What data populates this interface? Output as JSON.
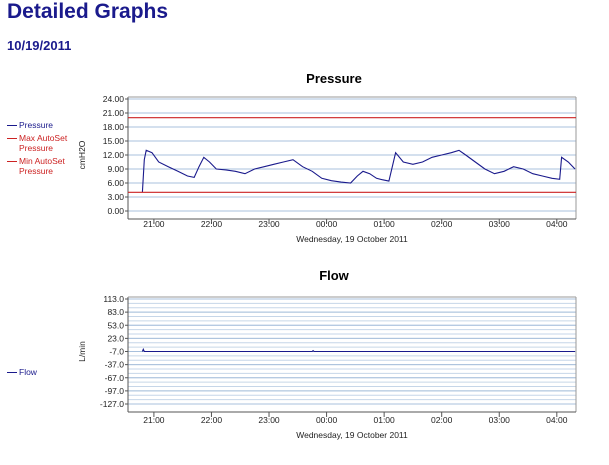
{
  "page": {
    "title": "Detailed Graphs",
    "date": "10/19/2011"
  },
  "colors": {
    "title": "#1a1a8c",
    "series_blue": "#1a1a8c",
    "threshold_red": "#cc2222",
    "grid_blue": "#a8c0dc"
  },
  "chart_data": [
    {
      "type": "line",
      "title": "Pressure",
      "ylabel": "cmH2O",
      "xlabel": "Wednesday, 19 October 2011",
      "ylim": [
        0,
        24
      ],
      "yticks": [
        "24.00",
        "21.00",
        "18.00",
        "15.00",
        "12.00",
        "9.00",
        "6.00",
        "3.00",
        "0.00"
      ],
      "xlim": [
        "20:33",
        "04:20"
      ],
      "xticks": [
        "21:00",
        "22:00",
        "23:00",
        "00:00",
        "01:00",
        "02:00",
        "03:00",
        "04:00"
      ],
      "grid": true,
      "legend_position": "left",
      "series": [
        {
          "name": "Pressure",
          "color": "#1a1a8c",
          "points": [
            [
              "20:48",
              4.0
            ],
            [
              "20:50",
              11.0
            ],
            [
              "20:52",
              13.0
            ],
            [
              "20:58",
              12.5
            ],
            [
              "21:05",
              10.5
            ],
            [
              "21:15",
              9.5
            ],
            [
              "21:25",
              8.5
            ],
            [
              "21:35",
              7.5
            ],
            [
              "21:42",
              7.2
            ],
            [
              "21:47",
              9.5
            ],
            [
              "21:52",
              11.5
            ],
            [
              "21:58",
              10.5
            ],
            [
              "22:05",
              9.0
            ],
            [
              "22:15",
              8.8
            ],
            [
              "22:25",
              8.5
            ],
            [
              "22:35",
              8.0
            ],
            [
              "22:45",
              9.0
            ],
            [
              "22:55",
              9.5
            ],
            [
              "23:05",
              10.0
            ],
            [
              "23:15",
              10.5
            ],
            [
              "23:25",
              11.0
            ],
            [
              "23:35",
              9.5
            ],
            [
              "23:45",
              8.5
            ],
            [
              "23:55",
              7.0
            ],
            [
              "00:05",
              6.5
            ],
            [
              "00:15",
              6.2
            ],
            [
              "00:25",
              6.0
            ],
            [
              "00:32",
              7.5
            ],
            [
              "00:38",
              8.5
            ],
            [
              "00:45",
              8.0
            ],
            [
              "00:52",
              7.0
            ],
            [
              "00:58",
              6.7
            ],
            [
              "01:05",
              6.4
            ],
            [
              "01:12",
              12.5
            ],
            [
              "01:20",
              10.5
            ],
            [
              "01:30",
              10.0
            ],
            [
              "01:40",
              10.5
            ],
            [
              "01:50",
              11.5
            ],
            [
              "02:00",
              12.0
            ],
            [
              "02:10",
              12.5
            ],
            [
              "02:18",
              13.0
            ],
            [
              "02:25",
              12.0
            ],
            [
              "02:35",
              10.5
            ],
            [
              "02:45",
              9.0
            ],
            [
              "02:55",
              8.0
            ],
            [
              "03:05",
              8.5
            ],
            [
              "03:15",
              9.5
            ],
            [
              "03:25",
              9.0
            ],
            [
              "03:35",
              8.0
            ],
            [
              "03:45",
              7.5
            ],
            [
              "03:55",
              7.0
            ],
            [
              "04:03",
              6.8
            ],
            [
              "04:05",
              11.5
            ],
            [
              "04:12",
              10.5
            ],
            [
              "04:19",
              9.0
            ]
          ]
        },
        {
          "name": "Max AutoSet Pressure",
          "color": "#cc2222",
          "values": [
            20.0
          ]
        },
        {
          "name": "Min AutoSet Pressure",
          "color": "#cc2222",
          "values": [
            4.0
          ]
        }
      ]
    },
    {
      "type": "line",
      "title": "Flow",
      "ylabel": "L/min",
      "xlabel": "Wednesday, 19 October 2011",
      "ylim": [
        -127.0,
        113.0
      ],
      "yticks": [
        "113.0",
        "83.0",
        "53.0",
        "23.0",
        "-7.0",
        "-37.0",
        "-67.0",
        "-97.0",
        "-127.0"
      ],
      "xlim": [
        "20:33",
        "04:20"
      ],
      "xticks": [
        "21:00",
        "22:00",
        "23:00",
        "00:00",
        "01:00",
        "02:00",
        "03:00",
        "04:00"
      ],
      "grid": true,
      "legend_position": "left",
      "series": [
        {
          "name": "Flow",
          "color": "#1a1a8c",
          "points": [
            [
              "20:48",
              -7.0
            ],
            [
              "20:49",
              -2.0
            ],
            [
              "20:50",
              -7.0
            ],
            [
              "23:45",
              -7.0
            ],
            [
              "23:46",
              -5.0
            ],
            [
              "23:47",
              -7.0
            ],
            [
              "04:19",
              -7.0
            ]
          ]
        }
      ]
    }
  ]
}
